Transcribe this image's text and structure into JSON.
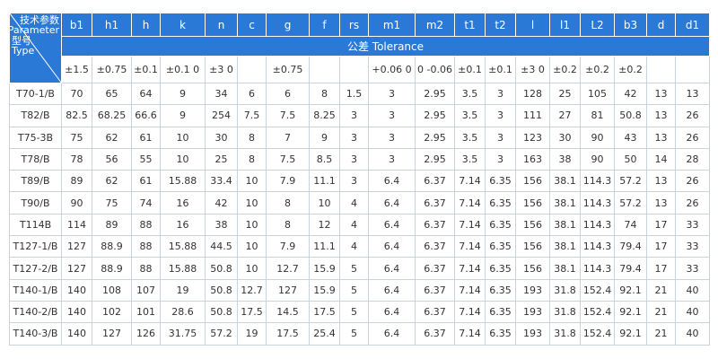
{
  "table": {
    "corner_top": [
      "技术参数",
      "Parameter"
    ],
    "corner_bottom": [
      "型号",
      "Type"
    ],
    "columns": [
      "b1",
      "h1",
      "h",
      "k",
      "n",
      "c",
      "g",
      "f",
      "rs",
      "m1",
      "m2",
      "t1",
      "t2",
      "l",
      "l1",
      "L2",
      "b3",
      "d",
      "d1"
    ],
    "tolerance_title": "公差 Tolerance",
    "tolerances": [
      "±1.5",
      "±0.75",
      "±0.1",
      "±0.1 0",
      "±3 0",
      null,
      "±0.75",
      null,
      null,
      "+0.06 0",
      "0 -0.06",
      "±0.1",
      "±0.1",
      "±3 0",
      "±0.2",
      "±0.2",
      "±0.2",
      null,
      null
    ],
    "rows": [
      [
        "T70-1/B",
        "70",
        "65",
        "64",
        "9",
        "34",
        "6",
        "6",
        "8",
        "1.5",
        "3",
        "2.95",
        "3.5",
        "3",
        "128",
        "25",
        "105",
        "42",
        "13",
        "13"
      ],
      [
        "T82/B",
        "82.5",
        "68.25",
        "66.6",
        "9",
        "254",
        "7.5",
        "7.5",
        "8.25",
        "3",
        "3",
        "2.95",
        "3.5",
        "3",
        "111",
        "27",
        "81",
        "50.8",
        "13",
        "26"
      ],
      [
        "T75-3B",
        "75",
        "62",
        "61",
        "10",
        "30",
        "8",
        "7",
        "9",
        "3",
        "3",
        "2.95",
        "3.5",
        "3",
        "123",
        "30",
        "90",
        "43",
        "13",
        "26"
      ],
      [
        "T78/B",
        "78",
        "56",
        "55",
        "10",
        "25",
        "8",
        "7.5",
        "8.5",
        "3",
        "3",
        "2.95",
        "3.5",
        "3",
        "163",
        "38",
        "90",
        "50",
        "14",
        "28"
      ],
      [
        "T89/B",
        "89",
        "62",
        "61",
        "15.88",
        "33.4",
        "10",
        "7.9",
        "11.1",
        "3",
        "6.4",
        "6.37",
        "7.14",
        "6.35",
        "156",
        "38.1",
        "114.3",
        "57.2",
        "13",
        "26"
      ],
      [
        "T90/B",
        "90",
        "75",
        "74",
        "16",
        "42",
        "10",
        "8",
        "10",
        "4",
        "6.4",
        "6.37",
        "7.14",
        "6.35",
        "156",
        "38.1",
        "114.3",
        "57.2",
        "13",
        "26"
      ],
      [
        "T114B",
        "114",
        "89",
        "88",
        "16",
        "38",
        "10",
        "8",
        "12",
        "4",
        "6.4",
        "6.37",
        "7.14",
        "6.35",
        "156",
        "38.1",
        "114.3",
        "74",
        "17",
        "33"
      ],
      [
        "T127-1/B",
        "127",
        "88.9",
        "88",
        "15.88",
        "44.5",
        "10",
        "7.9",
        "11.1",
        "4",
        "6.4",
        "6.37",
        "7.14",
        "6.35",
        "156",
        "38.1",
        "114.3",
        "79.4",
        "17",
        "33"
      ],
      [
        "T127-2/B",
        "127",
        "88.9",
        "88",
        "15.88",
        "50.8",
        "10",
        "12.7",
        "15.9",
        "5",
        "6.4",
        "6.37",
        "7.14",
        "6.35",
        "156",
        "38.1",
        "114.3",
        "79.4",
        "17",
        "33"
      ],
      [
        "T140-1/B",
        "140",
        "108",
        "107",
        "19",
        "50.8",
        "12.7",
        "127",
        "15.9",
        "5",
        "6.4",
        "6.37",
        "7.14",
        "6.35",
        "193",
        "31.8",
        "152.4",
        "92.1",
        "21",
        "40"
      ],
      [
        "T140-2/B",
        "140",
        "102",
        "101",
        "28.6",
        "50.8",
        "17.5",
        "14.5",
        "17.5",
        "5",
        "6.4",
        "6.37",
        "7.14",
        "6.35",
        "193",
        "31.8",
        "152.4",
        "92.1",
        "21",
        "40"
      ],
      [
        "T140-3/B",
        "140",
        "127",
        "126",
        "31.75",
        "57.2",
        "19",
        "17.5",
        "25.4",
        "5",
        "6.4",
        "6.37",
        "7.14",
        "6.35",
        "193",
        "31.8",
        "152.4",
        "92.1",
        "21",
        "40"
      ]
    ]
  }
}
